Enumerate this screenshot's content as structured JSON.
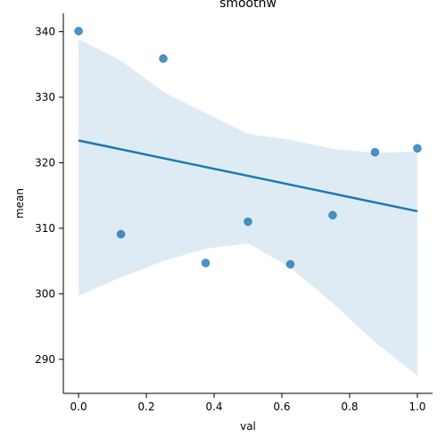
{
  "chart_data": {
    "type": "scatter",
    "title": "smoothw",
    "xlabel": "val",
    "ylabel": "mean",
    "xlim": [
      -0.045,
      1.045
    ],
    "ylim": [
      284.8,
      342.8
    ],
    "x_ticks": [
      0.0,
      0.2,
      0.4,
      0.6,
      0.8,
      1.0
    ],
    "x_tick_labels": [
      "0.0",
      "0.2",
      "0.4",
      "0.6",
      "0.8",
      "1.0"
    ],
    "y_ticks": [
      290,
      300,
      310,
      320,
      330,
      340
    ],
    "y_tick_labels": [
      "290",
      "300",
      "310",
      "320",
      "330",
      "340"
    ],
    "grid": false,
    "colors": {
      "points": "#1f77b4",
      "regression_line": "#1f77b4",
      "confidence_band": "#1f77b4"
    },
    "points": [
      {
        "x": 0.0,
        "y": 340.1
      },
      {
        "x": 0.125,
        "y": 309.1
      },
      {
        "x": 0.25,
        "y": 335.9
      },
      {
        "x": 0.375,
        "y": 304.7
      },
      {
        "x": 0.5,
        "y": 311.0
      },
      {
        "x": 0.625,
        "y": 304.5
      },
      {
        "x": 0.75,
        "y": 312.0
      },
      {
        "x": 0.875,
        "y": 321.6
      },
      {
        "x": 1.0,
        "y": 322.2
      }
    ],
    "regression_line": [
      {
        "x": 0.0,
        "y": 323.4
      },
      {
        "x": 1.0,
        "y": 312.6
      }
    ],
    "confidence_band": [
      {
        "x": 0.0,
        "lower": 299.7,
        "upper": 338.9
      },
      {
        "x": 0.125,
        "lower": 302.5,
        "upper": 335.6
      },
      {
        "x": 0.25,
        "lower": 305.0,
        "upper": 330.8
      },
      {
        "x": 0.375,
        "lower": 306.9,
        "upper": 327.6
      },
      {
        "x": 0.5,
        "lower": 307.7,
        "upper": 324.4
      },
      {
        "x": 0.625,
        "lower": 304.0,
        "upper": 323.5
      },
      {
        "x": 0.75,
        "lower": 298.6,
        "upper": 322.1
      },
      {
        "x": 0.875,
        "lower": 292.6,
        "upper": 321.5
      },
      {
        "x": 1.0,
        "lower": 287.5,
        "upper": 321.7
      }
    ]
  }
}
